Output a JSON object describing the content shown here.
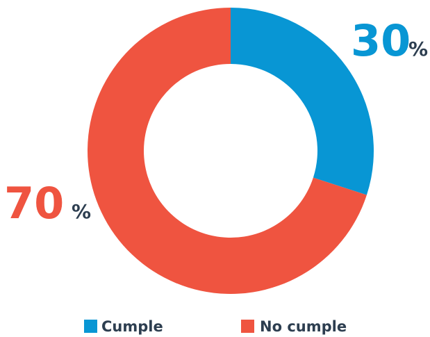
{
  "chart_data": {
    "type": "pie",
    "categories": [
      "Cumple",
      "No cumple"
    ],
    "values": [
      30,
      70
    ],
    "colors": [
      "#0896d4",
      "#ef5440"
    ],
    "value_labels": [
      "30",
      "70"
    ],
    "unit": "%",
    "legend_position": "bottom"
  }
}
